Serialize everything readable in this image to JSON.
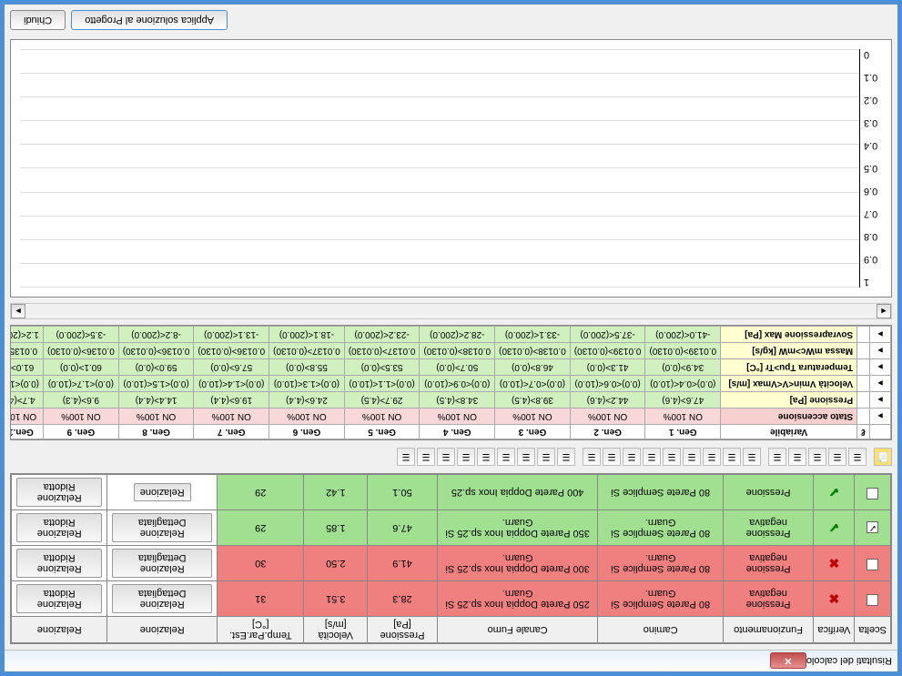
{
  "window": {
    "title": "Risultati del calcolo"
  },
  "topTable": {
    "headers": [
      "Scelta",
      "Verifica",
      "Funzionamento",
      "Camino",
      "Canale Fumo",
      "Pressione [Pa]",
      "Velocità [m/s]",
      "Temp.Par.Est. [°C]",
      "Relazione",
      "Relazione"
    ],
    "rows": [
      {
        "scelta": {
          "checked": false
        },
        "verifica": "x",
        "funz": "Pressione negativa",
        "camino": "80 Parete Semplice Si Guarn.",
        "canale": "250 Parete Doppia Inox sp.25 Si Guarn.",
        "press": "28.3",
        "vel": "3.51",
        "temp": "31",
        "rel1": "Relazione Dettagliata",
        "rel2": "Relazione Ridotta",
        "color": "red"
      },
      {
        "scelta": {
          "checked": false
        },
        "verifica": "x",
        "funz": "Pressione negativa",
        "camino": "80 Parete Semplice Si Guarn.",
        "canale": "300 Parete Doppia Inox sp.25 Si Guarn.",
        "press": "41.9",
        "vel": "2.50",
        "temp": "30",
        "rel1": "Relazione Dettagliata",
        "rel2": "Relazione Ridotta",
        "color": "red"
      },
      {
        "scelta": {
          "checked": true
        },
        "verifica": "check",
        "funz": "Pressione negativa",
        "camino": "80 Parete Semplice Si Guarn.",
        "canale": "350 Parete Doppia Inox sp.25 Si Guarn.",
        "press": "47.6",
        "vel": "1.85",
        "temp": "29",
        "rel1": "Relazione Dettagliata",
        "rel2": "Relazione Ridotta",
        "color": "green"
      },
      {
        "scelta": {
          "checked": false
        },
        "verifica": "check",
        "funz": "Pressione",
        "camino": "80 Parete Semplice Si",
        "canale": "400 Parete Doppia Inox sp.25",
        "press": "50.1",
        "vel": "1.42",
        "temp": "29",
        "rel1": "Relazione",
        "rel2": "Relazione Ridotta",
        "color": "green"
      }
    ]
  },
  "midTable": {
    "headers": [
      "",
      "ℓ",
      "Variabile",
      "Gen. 1",
      "Gen. 2",
      "Gen. 3",
      "Gen. 4",
      "Gen. 5",
      "Gen. 6",
      "Gen. 7",
      "Gen. 8",
      "Gen. 9",
      "Gen.1"
    ],
    "rows": [
      {
        "label": "Stato accensione",
        "type": "pink",
        "cells": [
          "ON 100%",
          "ON 100%",
          "ON 100%",
          "ON 100%",
          "ON 100%",
          "ON 100%",
          "ON 100%",
          "ON 100%",
          "ON 100%",
          "ON 100"
        ]
      },
      {
        "label": "Pressione [Pa]",
        "type": "yellow",
        "cells": [
          "47.6>(4.6)",
          "44.2>(4.6)",
          "39.8>(4.5)",
          "34.8>(4.5)",
          "29.7>(4.5)",
          "24.6>(4.4)",
          "19.6>(4.4)",
          "14.4>(4.4)",
          "9.6>(4.3)",
          "4.7>(4."
        ]
      },
      {
        "label": "Velocità Vmin<V<Vmax [m/s]",
        "type": "yellow",
        "cells": [
          "(0.0)<0.4<(10.0)",
          "(0.0)<0.6<(10.0)",
          "(0.0)<0.7<(10.0)",
          "(0.0)<0.9<(10.0)",
          "(0.0)<1.1<(10.0)",
          "(0.0)<1.3<(10.0)",
          "(0.0)<1.4<(10.0)",
          "(0.0)<1.5<(10.0)",
          "(0.0)<1.7<(10.0)",
          "(0.0)<1.8"
        ]
      },
      {
        "label": "Temperatura Tpu>Tr [°C]",
        "type": "yellow",
        "cells": [
          "34.9>(0.0)",
          "41.3>(0.0)",
          "46.8>(0.0)",
          "50.7>(0.0)",
          "53.5>(0.0)",
          "55.8>(0.0)",
          "57.6>(0.0)",
          "59.0>(0.0)",
          "60.1>(0.0)",
          "61.0>("
        ]
      },
      {
        "label": "Massa mWc>mW [kg/s]",
        "type": "yellow",
        "cells": [
          "0.0139>(0.0130)",
          "0.0139>(0.0130)",
          "0.0138>(0.0130)",
          "0.0138>(0.0130)",
          "0.0137>(0.0130)",
          "0.0137>(0.0130)",
          "0.0136>(0.0130)",
          "0.0136>(0.0130)",
          "0.0136>(0.0130)",
          "0.0135>"
        ]
      },
      {
        "label": "Sovrapressione Max [Pa]",
        "type": "yellow",
        "cells": [
          "-41.0<(200.0)",
          "-37.5<(200.0)",
          "-33.1<(200.0)",
          "-28.2<(200.0)",
          "-23.2<(200.0)",
          "-18.1<(200.0)",
          "-13.1<(200.0)",
          "-8.2<(200.0)",
          "-3.5<(200.0)",
          "1.2<(200"
        ]
      }
    ]
  },
  "chart": {
    "yticks": [
      "1",
      "0.9",
      "0.8",
      "0.7",
      "0.6",
      "0.5",
      "0.4",
      "0.3",
      "0.2",
      "0.1",
      "0"
    ],
    "gridlines": [
      0,
      10,
      20,
      30,
      40,
      50,
      60,
      70,
      80,
      90,
      100
    ],
    "background": "#ffffff",
    "grid_color": "#dddddd"
  },
  "buttons": {
    "apply": "Applica soluzione al Progetto",
    "close": "Chiudi"
  }
}
